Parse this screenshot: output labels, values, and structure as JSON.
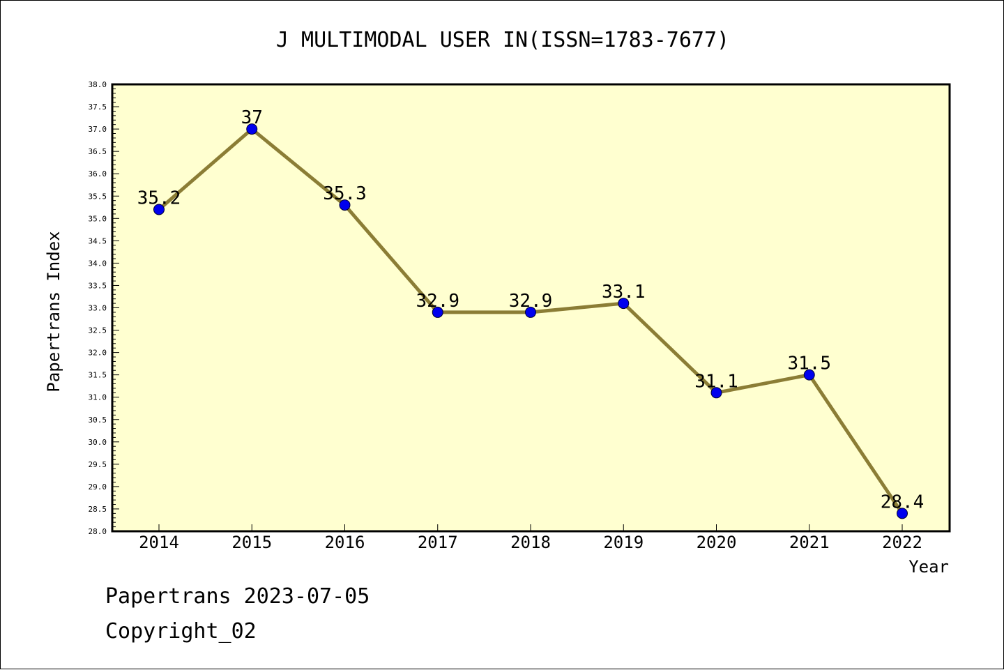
{
  "chart_data": {
    "type": "line",
    "title": "J MULTIMODAL USER IN(ISSN=1783-7677)",
    "xlabel": "Year",
    "ylabel": "Papertrans Index",
    "categories": [
      "2014",
      "2015",
      "2016",
      "2017",
      "2018",
      "2019",
      "2020",
      "2021",
      "2022"
    ],
    "series": [
      {
        "values": [
          35.2,
          37.0,
          35.3,
          32.9,
          32.9,
          33.1,
          31.1,
          31.5,
          28.4
        ],
        "data_labels": [
          "35.2",
          "37",
          "35.3",
          "32.9",
          "32.9",
          "33.1",
          "31.1",
          "31.5",
          "28.4"
        ]
      }
    ],
    "ylim": [
      28.0,
      38.0
    ],
    "ytick_step": 0.5,
    "grid": false,
    "legend": "none",
    "colors": {
      "plot_background": "#ffffd0",
      "line": "#8b7d35",
      "marker": "#0000ee",
      "axis": "#000000",
      "text": "#000000"
    }
  },
  "footer": {
    "line1": "Papertrans 2023-07-05",
    "line2": "Copyright_02"
  }
}
